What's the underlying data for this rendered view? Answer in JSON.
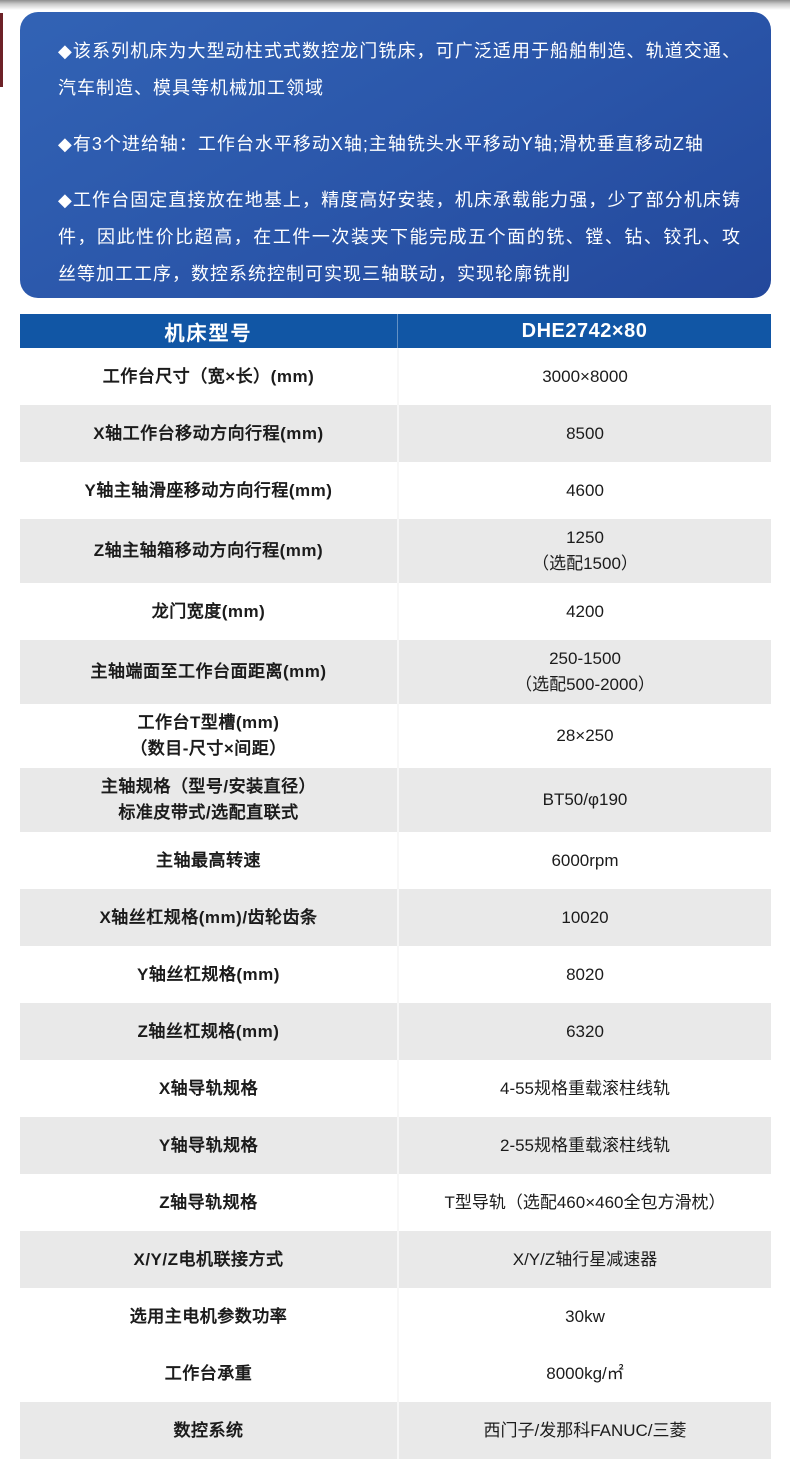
{
  "intro": {
    "bullets": [
      "◆该系列机床为大型动柱式式数控龙门铣床，可广泛适用于船舶制造、轨道交通、汽车制造、模具等机械加工领域",
      "◆有3个进给轴：工作台水平移动X轴;主轴铣头水平移动Y轴;滑枕垂直移动Z轴",
      "◆工作台固定直接放在地基上，精度高好安装，机床承载能力强，少了部分机床铸件，因此性价比超高，在工件一次装夹下能完成五个面的铣、镗、钻、铰孔、攻丝等加工工序，数控系统控制可实现三轴联动，实现轮廓铣削"
    ]
  },
  "table": {
    "header": {
      "param_label": "机床型号",
      "model_value": "DHE2742×80"
    },
    "rows": [
      {
        "label": "工作台尺寸（宽×长）(mm)",
        "value": "3000×8000",
        "shade": "row-white"
      },
      {
        "label": "X轴工作台移动方向行程(mm)",
        "value": "8500",
        "shade": "row-gray"
      },
      {
        "label": "Y轴主轴滑座移动方向行程(mm)",
        "value": "4600",
        "shade": "row-white"
      },
      {
        "label": "Z轴主轴箱移动方向行程(mm)",
        "value": "1250\n（选配1500）",
        "shade": "row-gray"
      },
      {
        "label": "龙门宽度(mm)",
        "value": "4200",
        "shade": "row-white"
      },
      {
        "label": "主轴端面至工作台面距离(mm)",
        "value": "250-1500\n（选配500-2000）",
        "shade": "row-gray"
      },
      {
        "label": "工作台T型槽(mm)\n（数目-尺寸×间距）",
        "value": "28×250",
        "shade": "row-white"
      },
      {
        "label": "主轴规格（型号/安装直径）\n标准皮带式/选配直联式",
        "value": "BT50/φ190",
        "shade": "row-gray"
      },
      {
        "label": "主轴最高转速",
        "value": "6000rpm",
        "shade": "row-white"
      },
      {
        "label": "X轴丝杠规格(mm)/齿轮齿条",
        "value": "10020",
        "shade": "row-gray"
      },
      {
        "label": "Y轴丝杠规格(mm)",
        "value": "8020",
        "shade": "row-white"
      },
      {
        "label": "Z轴丝杠规格(mm)",
        "value": "6320",
        "shade": "row-gray"
      },
      {
        "label": "X轴导轨规格",
        "value": "4-55规格重载滚柱线轨",
        "shade": "row-white"
      },
      {
        "label": "Y轴导轨规格",
        "value": "2-55规格重载滚柱线轨",
        "shade": "row-gray"
      },
      {
        "label": "Z轴导轨规格",
        "value": "T型导轨（选配460×460全包方滑枕）",
        "shade": "row-white"
      },
      {
        "label": "X/Y/Z电机联接方式",
        "value": "X/Y/Z轴行星减速器",
        "shade": "row-gray"
      },
      {
        "label": "选用主电机参数功率",
        "value": "30kw",
        "shade": "row-white"
      },
      {
        "label": "工作台承重",
        "value": "8000kg/㎡",
        "shade": "row-white"
      },
      {
        "label": "数控系统",
        "value": "西门子/发那科FANUC/三菱",
        "shade": "row-gray"
      }
    ]
  },
  "colors": {
    "panel_blue_start": "#3263b5",
    "panel_blue_end": "#23489b",
    "header_blue": "#1156a5",
    "row_gray": "#e9e9e9",
    "text_dark": "#1b1b1b",
    "accent_red": "#6d2127"
  }
}
